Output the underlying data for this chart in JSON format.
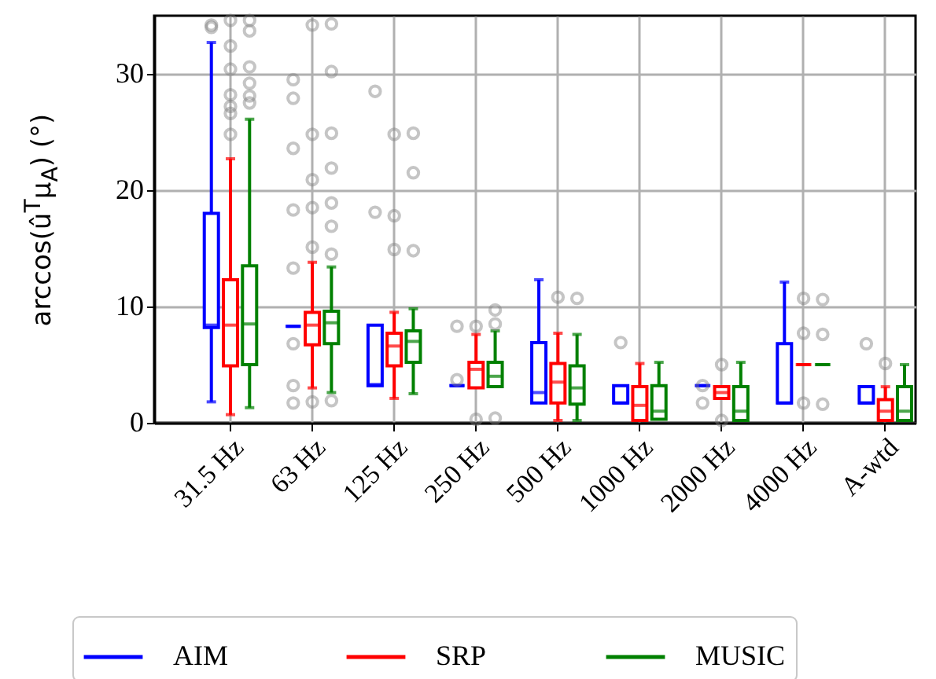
{
  "chart_data": {
    "type": "box",
    "ylabel": "arccos(û$^{T}$μ$_{A}$) (°)",
    "categories": [
      "31.5 Hz",
      "63 Hz",
      "125 Hz",
      "250 Hz",
      "500 Hz",
      "1000 Hz",
      "2000 Hz",
      "4000 Hz",
      "A-wtd"
    ],
    "ylim": [
      0,
      35
    ],
    "yticks": [
      0,
      10,
      20,
      30
    ],
    "grid": true,
    "legend": "bottom",
    "series": [
      {
        "name": "AIM",
        "color": "#0000ff",
        "boxes": [
          {
            "low": 1.8,
            "q1": 8.2,
            "median": 8.4,
            "q3": 18.0,
            "high": 32.7,
            "outliers": [
              34.2,
              34.0
            ]
          },
          {
            "low": 8.3,
            "q1": 8.3,
            "median": 8.3,
            "q3": 8.3,
            "high": 8.3,
            "outliers": [
              29.5,
              27.9,
              23.6,
              18.3,
              13.3,
              6.8,
              3.2,
              1.7
            ]
          },
          {
            "low": 3.2,
            "q1": 3.2,
            "median": 3.3,
            "q3": 8.4,
            "high": 8.4,
            "outliers": [
              28.5,
              18.1
            ]
          },
          {
            "low": 3.2,
            "q1": 3.2,
            "median": 3.2,
            "q3": 3.2,
            "high": 3.2,
            "outliers": [
              8.3,
              3.7
            ]
          },
          {
            "low": 1.7,
            "q1": 1.7,
            "median": 2.6,
            "q3": 6.9,
            "high": 12.3
          },
          {
            "low": 1.7,
            "q1": 1.7,
            "median": 1.7,
            "q3": 3.2,
            "high": 3.2,
            "outliers": [
              6.9
            ]
          },
          {
            "low": 3.2,
            "q1": 3.2,
            "median": 3.2,
            "q3": 3.2,
            "high": 3.2,
            "outliers": [
              3.2,
              1.7
            ]
          },
          {
            "low": 1.7,
            "q1": 1.7,
            "median": 1.7,
            "q3": 6.8,
            "high": 12.1
          },
          {
            "low": 1.7,
            "q1": 1.7,
            "median": 1.7,
            "q3": 3.1,
            "high": 3.1,
            "outliers": [
              6.8
            ]
          }
        ]
      },
      {
        "name": "SRP",
        "color": "#ff0000",
        "boxes": [
          {
            "low": 0.7,
            "q1": 4.9,
            "median": 8.4,
            "q3": 12.3,
            "high": 22.7,
            "outliers": [
              34.6,
              32.4,
              30.4,
              28.2,
              27.2,
              26.6,
              24.8
            ]
          },
          {
            "low": 3.0,
            "q1": 6.7,
            "median": 8.4,
            "q3": 9.5,
            "high": 13.8,
            "outliers": [
              34.2,
              24.8,
              20.9,
              18.5,
              15.1,
              1.8
            ]
          },
          {
            "low": 2.1,
            "q1": 4.9,
            "median": 6.6,
            "q3": 7.7,
            "high": 9.5,
            "outliers": [
              24.8,
              17.8,
              14.9
            ]
          },
          {
            "low": 3.0,
            "q1": 3.0,
            "median": 4.6,
            "q3": 5.2,
            "high": 7.6,
            "outliers": [
              8.3,
              0.3
            ]
          },
          {
            "low": 0.2,
            "q1": 1.7,
            "median": 3.5,
            "q3": 5.1,
            "high": 7.7,
            "outliers": [
              10.8
            ]
          },
          {
            "low": 0.2,
            "q1": 0.2,
            "median": 1.5,
            "q3": 3.1,
            "high": 5.1
          },
          {
            "low": 2.1,
            "q1": 2.1,
            "median": 2.6,
            "q3": 3.1,
            "high": 3.1,
            "outliers": [
              5.0,
              0.2
            ]
          },
          {
            "low": 5.0,
            "q1": 5.0,
            "median": 5.0,
            "q3": 5.0,
            "high": 5.0,
            "outliers": [
              10.7,
              7.7,
              1.7
            ]
          },
          {
            "low": 0.2,
            "q1": 0.2,
            "median": 1.0,
            "q3": 2.0,
            "high": 3.1,
            "outliers": [
              5.1
            ]
          }
        ]
      },
      {
        "name": "MUSIC",
        "color": "#008000",
        "boxes": [
          {
            "low": 1.3,
            "q1": 5.0,
            "median": 8.5,
            "q3": 13.5,
            "high": 26.1,
            "outliers": [
              34.6,
              33.7,
              30.6,
              29.2,
              28.1,
              27.5
            ]
          },
          {
            "low": 2.6,
            "q1": 6.8,
            "median": 8.6,
            "q3": 9.6,
            "high": 13.4,
            "outliers": [
              34.3,
              30.2,
              24.9,
              21.9,
              18.9,
              16.9,
              14.5,
              1.9
            ]
          },
          {
            "low": 2.5,
            "q1": 5.2,
            "median": 7.0,
            "q3": 7.9,
            "high": 9.8,
            "outliers": [
              24.9,
              21.5,
              14.8
            ]
          },
          {
            "low": 3.1,
            "q1": 3.1,
            "median": 4.0,
            "q3": 5.2,
            "high": 7.9,
            "outliers": [
              9.7,
              8.5,
              0.4
            ]
          },
          {
            "low": 0.2,
            "q1": 1.6,
            "median": 3.0,
            "q3": 4.9,
            "high": 7.6,
            "outliers": [
              10.7
            ]
          },
          {
            "low": 0.3,
            "q1": 0.3,
            "median": 1.0,
            "q3": 3.2,
            "high": 5.2
          },
          {
            "low": 0.2,
            "q1": 0.2,
            "median": 1.0,
            "q3": 3.1,
            "high": 5.2
          },
          {
            "low": 5.0,
            "q1": 5.0,
            "median": 5.0,
            "q3": 5.0,
            "high": 5.0,
            "outliers": [
              10.6,
              7.6,
              1.6
            ]
          },
          {
            "low": 0.2,
            "q1": 0.2,
            "median": 1.0,
            "q3": 3.1,
            "high": 5.0
          }
        ]
      }
    ]
  }
}
